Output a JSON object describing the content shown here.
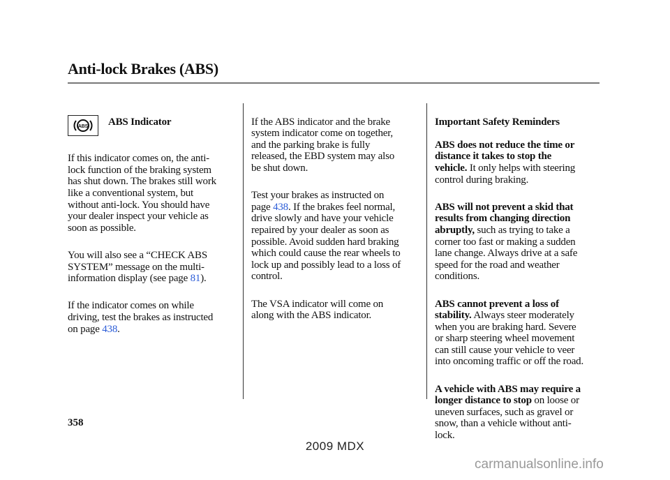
{
  "header": {
    "title": "Anti-lock Brakes (ABS)"
  },
  "col1": {
    "indicator_icon": "abs-indicator-icon",
    "heading": "ABS Indicator",
    "p1": "If this indicator comes on, the anti-\nlock function of the braking system\nhas shut down. The brakes still work\nlike a conventional system, but\nwithout anti-lock. You should have\nyour dealer inspect your vehicle as\nsoon as possible.",
    "p2_pre": "You will also see a “CHECK ABS\nSYSTEM” message on the multi-\ninformation display (see page ",
    "p2_link": "81",
    "p2_post": ").",
    "p3_pre": "If the indicator comes on while\ndriving, test the brakes as instructed\non page ",
    "p3_link": "438",
    "p3_post": "."
  },
  "col2": {
    "p1": "If the ABS indicator and the brake\nsystem indicator come on together,\nand the parking brake is fully\nreleased, the EBD system may also\nbe shut down.",
    "p2_pre": "Test your brakes as instructed on\npage ",
    "p2_link": "438",
    "p2_post": ". If the brakes feel normal,\ndrive slowly and have your vehicle\nrepaired by your dealer as soon as\npossible. Avoid sudden hard braking\nwhich could cause the rear wheels to\nlock up and possibly lead to a loss of\ncontrol.",
    "p3": "The VSA indicator will come on\nalong with the ABS indicator."
  },
  "col3": {
    "heading": "Important Safety Reminders",
    "p1_bold": "ABS does not reduce the time or\ndistance it takes to stop the\nvehicle.",
    "p1_text": " It only helps with steering\ncontrol during braking.",
    "p2_bold": "ABS will not prevent a skid that\nresults from changing direction\nabruptly,",
    "p2_text": " such as trying to take a\ncorner too fast or making a sudden\nlane change. Always drive at a safe\nspeed for the road and weather\nconditions.",
    "p3_bold": "ABS cannot prevent a loss of\nstability.",
    "p3_text": " Always steer moderately\nwhen you are braking hard. Severe\nor sharp steering wheel movement\ncan still cause your vehicle to veer\ninto oncoming traffic or off the road.",
    "p4_bold": "A vehicle with ABS may require a\nlonger distance to stop",
    "p4_text": " on loose or\nuneven surfaces, such as gravel or\nsnow, than a vehicle without anti-\nlock."
  },
  "footer": {
    "page_number": "358",
    "model": "2009  MDX",
    "watermark": "carmanualsonline.info"
  },
  "colors": {
    "link": "#2a5bd7",
    "rule": "#777777",
    "watermark": "#999999"
  }
}
